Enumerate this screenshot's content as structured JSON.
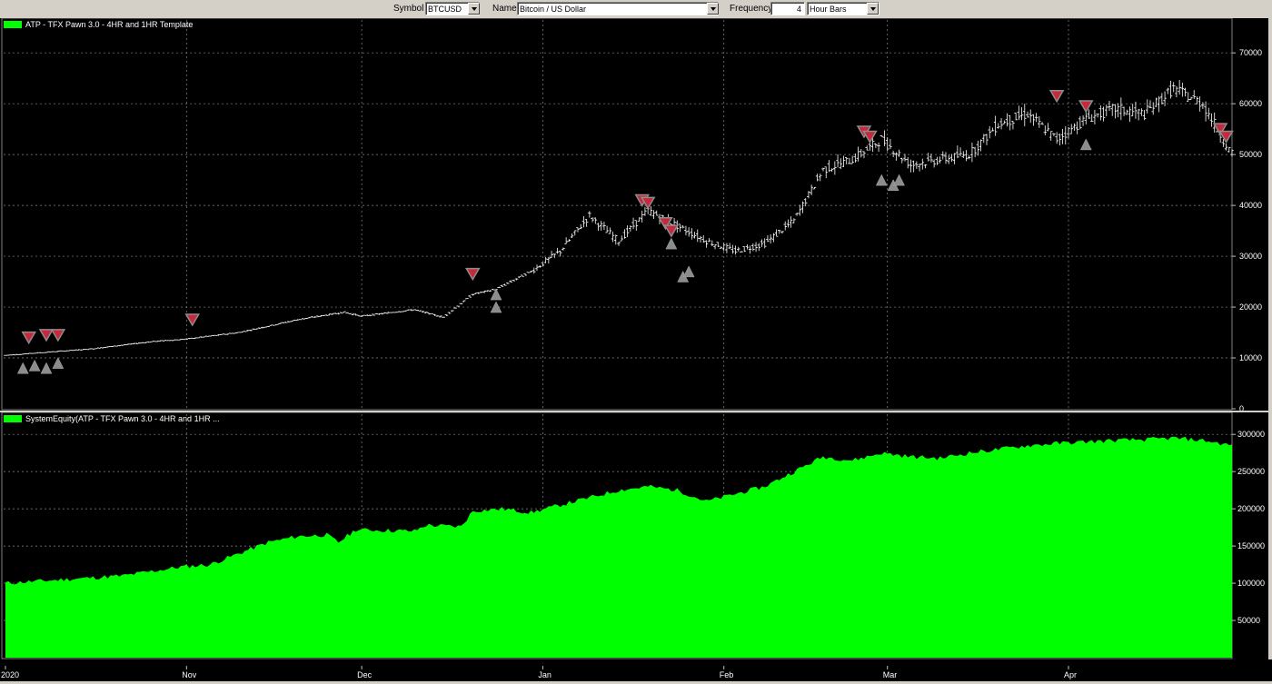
{
  "toolbar": {
    "symbol_label": "Symbol",
    "symbol_value": "BTCUSD",
    "name_label": "Name",
    "name_value": "Bitcoin / US Dollar",
    "frequency_label": "Frequency",
    "frequency_value": "4",
    "frequency_unit": "Hour Bars"
  },
  "price_pane": {
    "title": "ATP - TFX Pawn 3.0 - 4HR and 1HR Template",
    "legend_color": "#00ff00",
    "y_ticks": [
      "70000",
      "60000",
      "50000",
      "40000",
      "30000",
      "20000",
      "10000",
      "0"
    ],
    "y_tick_values": [
      70000,
      60000,
      50000,
      40000,
      30000,
      20000,
      10000,
      0
    ]
  },
  "equity_pane": {
    "title": "SystemEquity(ATP - TFX Pawn 3.0 - 4HR and 1HR ...",
    "legend_color": "#00ff00",
    "y_ticks": [
      "300000",
      "250000",
      "200000",
      "150000",
      "100000",
      "50000"
    ],
    "y_tick_values": [
      300000,
      250000,
      200000,
      150000,
      100000,
      50000
    ]
  },
  "date_axis": {
    "labels": [
      "2020",
      "Nov",
      "Dec",
      "Jan",
      "Feb",
      "Mar",
      "Apr"
    ],
    "positions_days": [
      0,
      31,
      61,
      92,
      123,
      151,
      182
    ]
  },
  "chart_data": [
    {
      "type": "line",
      "ylim": [
        0,
        72000
      ],
      "x": [
        0,
        8,
        15,
        25,
        31,
        40,
        50,
        58,
        61,
        70,
        75,
        80,
        84,
        90,
        95,
        100,
        105,
        110,
        115,
        120,
        125,
        130,
        135,
        140,
        145,
        150,
        155,
        160,
        165,
        170,
        175,
        180,
        185,
        190,
        195,
        200,
        205,
        210
      ],
      "values": [
        10500,
        11200,
        11800,
        13200,
        13700,
        15000,
        17500,
        19000,
        18200,
        19500,
        18000,
        22500,
        23500,
        27000,
        31000,
        38000,
        33000,
        39000,
        36000,
        33000,
        31000,
        32500,
        37000,
        47000,
        49000,
        53000,
        48000,
        49000,
        50000,
        56000,
        58000,
        53000,
        57000,
        59000,
        58000,
        63000,
        60000,
        50000
      ],
      "buy_markers": [
        [
          3,
          8000
        ],
        [
          5,
          8500
        ],
        [
          7,
          8000
        ],
        [
          9,
          9000
        ],
        [
          84,
          20000
        ],
        [
          84,
          22500
        ],
        [
          114,
          32500
        ],
        [
          116,
          26000
        ],
        [
          117,
          27000
        ],
        [
          150,
          45000
        ],
        [
          152,
          44000
        ],
        [
          153,
          45000
        ],
        [
          185,
          52000
        ]
      ],
      "sell_markers": [
        [
          4,
          14000
        ],
        [
          7,
          14500
        ],
        [
          9,
          14500
        ],
        [
          32,
          17500
        ],
        [
          80,
          26500
        ],
        [
          109,
          41000
        ],
        [
          110,
          40500
        ],
        [
          113,
          36500
        ],
        [
          114,
          35000
        ],
        [
          147,
          54500
        ],
        [
          148,
          53500
        ],
        [
          180,
          61500
        ],
        [
          185,
          59500
        ],
        [
          208,
          55000
        ],
        [
          209,
          53500
        ]
      ]
    },
    {
      "type": "area",
      "ylim": [
        0,
        310000
      ],
      "x": [
        0,
        10,
        20,
        30,
        35,
        40,
        45,
        50,
        55,
        57,
        60,
        70,
        72,
        78,
        80,
        85,
        90,
        95,
        100,
        105,
        110,
        115,
        120,
        125,
        130,
        135,
        140,
        145,
        150,
        155,
        160,
        165,
        170,
        175,
        180,
        185,
        190,
        195,
        200,
        205,
        210
      ],
      "values": [
        100000,
        105000,
        110000,
        122000,
        125000,
        140000,
        155000,
        163000,
        165000,
        155000,
        172000,
        170000,
        178000,
        176000,
        197000,
        200000,
        195000,
        205000,
        215000,
        225000,
        230000,
        225000,
        210000,
        220000,
        230000,
        250000,
        270000,
        265000,
        275000,
        270000,
        268000,
        275000,
        280000,
        285000,
        288000,
        290000,
        292000,
        293000,
        295000,
        292000,
        285000
      ]
    }
  ]
}
